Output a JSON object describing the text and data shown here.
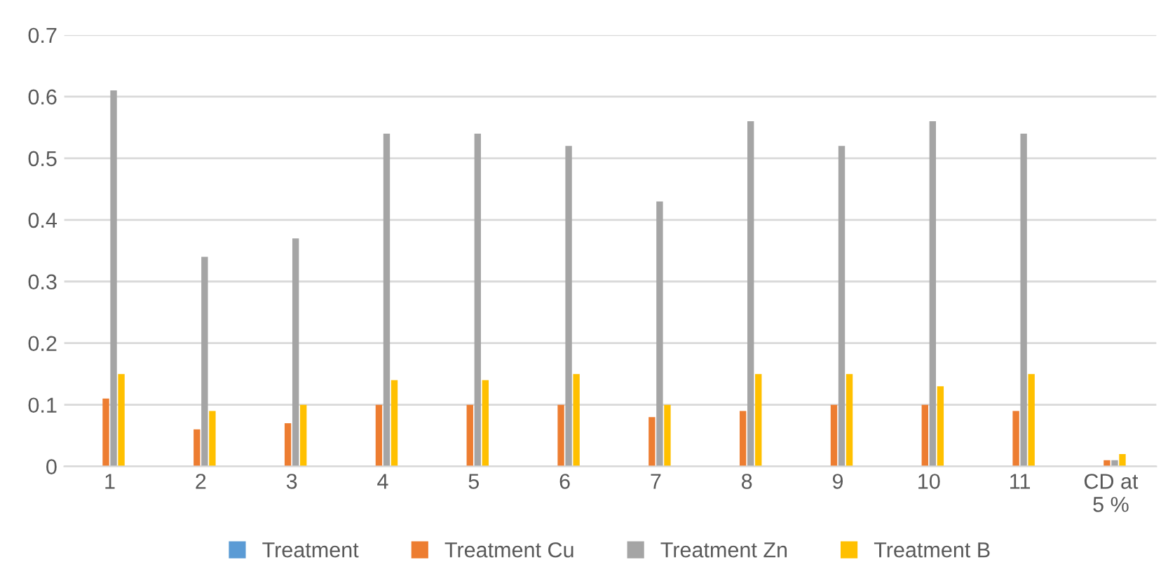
{
  "chart_data": {
    "type": "bar",
    "categories": [
      "1",
      "2",
      "3",
      "4",
      "5",
      "6",
      "7",
      "8",
      "9",
      "10",
      "11",
      "CD at\n5 %"
    ],
    "series": [
      {
        "name": "Treatment",
        "color": "#5b9bd5",
        "values": [
          null,
          null,
          null,
          null,
          null,
          null,
          null,
          null,
          null,
          null,
          null,
          null
        ]
      },
      {
        "name": "Treatment Cu",
        "color": "#ed7d31",
        "values": [
          0.11,
          0.06,
          0.07,
          0.1,
          0.1,
          0.1,
          0.08,
          0.09,
          0.1,
          0.1,
          0.09,
          0.01
        ]
      },
      {
        "name": "Treatment Zn",
        "color": "#a5a5a5",
        "values": [
          0.61,
          0.34,
          0.37,
          0.54,
          0.54,
          0.52,
          0.43,
          0.56,
          0.52,
          0.56,
          0.54,
          0.01
        ]
      },
      {
        "name": "Treatment B",
        "color": "#ffc000",
        "values": [
          0.15,
          0.09,
          0.1,
          0.14,
          0.14,
          0.15,
          0.1,
          0.15,
          0.15,
          0.13,
          0.15,
          0.02
        ]
      }
    ],
    "ylim": [
      0,
      0.7
    ],
    "yticks": [
      0,
      0.1,
      0.2,
      0.3,
      0.4,
      0.5,
      0.6,
      0.7
    ],
    "grid": "y",
    "legend": "bottom"
  }
}
